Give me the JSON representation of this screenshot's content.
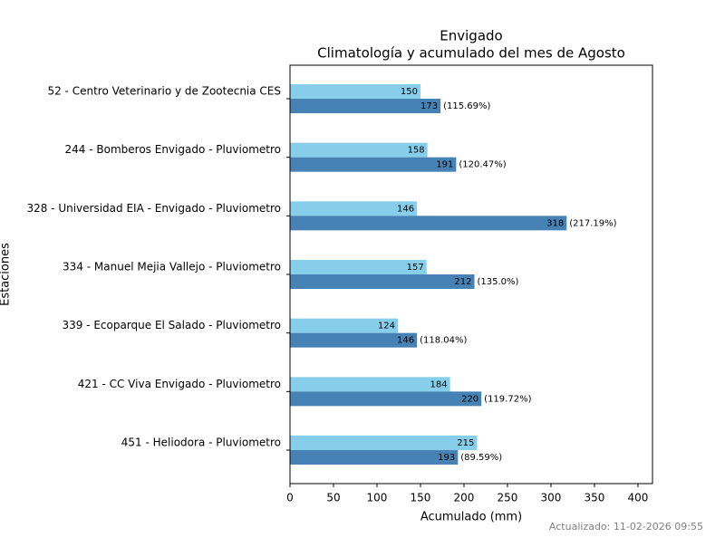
{
  "chart_data": {
    "type": "bar",
    "orientation": "horizontal",
    "title": "Envigado",
    "subtitle": "Climatología y acumulado del mes de Agosto",
    "x_label": "Acumulado (mm)",
    "y_label": "Estaciones",
    "footer": "Actualizado: 11-02-2026 09:55",
    "categories": [
      "52 - Centro Veterinario y de Zootecnia CES",
      "244 - Bomberos Envigado - Pluviometro",
      "328 - Universidad EIA - Envigado - Pluviometro",
      "334 - Manuel Mejia Vallejo - Pluviometro",
      "339 - Ecoparque El Salado - Pluviometro",
      "421 - CC Viva Envigado - Pluviometro",
      "451 - Heliodora - Pluviometro"
    ],
    "series": [
      {
        "color": "#87ceeb",
        "values": [
          150,
          158,
          146,
          157,
          124,
          184,
          215
        ]
      },
      {
        "color": "#4682b4",
        "values": [
          173,
          191,
          318,
          212,
          146,
          220,
          193
        ],
        "percent_labels": [
          "(115.69%)",
          "(120.47%)",
          "(217.19%)",
          "(135.0%)",
          "(118.04%)",
          "(119.72%)",
          "(89.59%)"
        ]
      }
    ],
    "xlim": [
      0,
      416.7
    ],
    "xticks": [
      0,
      50,
      100,
      150,
      200,
      250,
      300,
      350,
      400
    ]
  }
}
